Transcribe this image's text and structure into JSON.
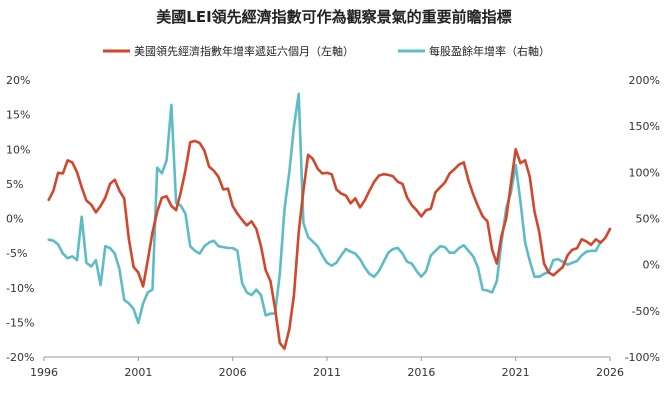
{
  "chart_data": {
    "type": "line",
    "title": "美國LEI領先經濟指數可作為觀察景氣的重要前瞻指標",
    "grid": false,
    "legend_position": "top",
    "x_range": [
      1996,
      2026
    ],
    "x_ticks": [
      "1996",
      "2001",
      "2006",
      "2011",
      "2016",
      "2021",
      "2026"
    ],
    "y_left": {
      "range": [
        -20,
        20
      ],
      "ticks": [
        "20%",
        "15%",
        "10%",
        "5%",
        "0%",
        "-5%",
        "-10%",
        "-15%",
        "-20%"
      ]
    },
    "y_right": {
      "range": [
        -100,
        200
      ],
      "ticks": [
        "200%",
        "150%",
        "100%",
        "50%",
        "0%",
        "-50%",
        "-100%"
      ]
    },
    "series": [
      {
        "name": "美國領先經濟指數年增率遞延六個月（左軸）",
        "axis": "left",
        "color": "#d2462b",
        "points": [
          [
            1996.25,
            2.7
          ],
          [
            1996.5,
            4.0
          ],
          [
            1996.75,
            6.6
          ],
          [
            1997.0,
            6.5
          ],
          [
            1997.25,
            8.4
          ],
          [
            1997.5,
            8.1
          ],
          [
            1997.75,
            6.7
          ],
          [
            1998.0,
            4.5
          ],
          [
            1998.25,
            2.6
          ],
          [
            1998.5,
            2.0
          ],
          [
            1998.75,
            0.9
          ],
          [
            1999.0,
            1.8
          ],
          [
            1999.25,
            3.0
          ],
          [
            1999.5,
            5.0
          ],
          [
            1999.75,
            5.6
          ],
          [
            2000.0,
            4.0
          ],
          [
            2000.25,
            2.9
          ],
          [
            2000.5,
            -3.0
          ],
          [
            2000.75,
            -7.0
          ],
          [
            2001.0,
            -7.8
          ],
          [
            2001.25,
            -9.8
          ],
          [
            2001.5,
            -6.0
          ],
          [
            2001.75,
            -2.0
          ],
          [
            2002.0,
            1.0
          ],
          [
            2002.25,
            3.0
          ],
          [
            2002.5,
            3.2
          ],
          [
            2002.75,
            1.8
          ],
          [
            2003.0,
            1.2
          ],
          [
            2003.25,
            3.8
          ],
          [
            2003.5,
            7.0
          ],
          [
            2003.75,
            11.0
          ],
          [
            2004.0,
            11.2
          ],
          [
            2004.25,
            10.9
          ],
          [
            2004.5,
            9.8
          ],
          [
            2004.75,
            7.5
          ],
          [
            2005.0,
            6.9
          ],
          [
            2005.25,
            6.0
          ],
          [
            2005.5,
            4.2
          ],
          [
            2005.75,
            4.3
          ],
          [
            2006.0,
            1.8
          ],
          [
            2006.25,
            0.7
          ],
          [
            2006.5,
            -0.2
          ],
          [
            2006.75,
            -1.0
          ],
          [
            2007.0,
            -0.4
          ],
          [
            2007.25,
            -1.5
          ],
          [
            2007.5,
            -4.0
          ],
          [
            2007.75,
            -7.5
          ],
          [
            2008.0,
            -9.0
          ],
          [
            2008.25,
            -13.0
          ],
          [
            2008.5,
            -18.0
          ],
          [
            2008.75,
            -18.8
          ],
          [
            2009.0,
            -16.0
          ],
          [
            2009.25,
            -11.0
          ],
          [
            2009.5,
            -2.0
          ],
          [
            2009.75,
            4.0
          ],
          [
            2010.0,
            9.2
          ],
          [
            2010.25,
            8.6
          ],
          [
            2010.5,
            7.2
          ],
          [
            2010.75,
            6.5
          ],
          [
            2011.0,
            6.6
          ],
          [
            2011.25,
            6.4
          ],
          [
            2011.5,
            4.2
          ],
          [
            2011.75,
            3.6
          ],
          [
            2012.0,
            3.3
          ],
          [
            2012.25,
            2.2
          ],
          [
            2012.5,
            2.9
          ],
          [
            2012.75,
            1.6
          ],
          [
            2013.0,
            2.6
          ],
          [
            2013.25,
            4.0
          ],
          [
            2013.5,
            5.3
          ],
          [
            2013.75,
            6.2
          ],
          [
            2014.0,
            6.4
          ],
          [
            2014.25,
            6.3
          ],
          [
            2014.5,
            6.1
          ],
          [
            2014.75,
            5.3
          ],
          [
            2015.0,
            5.0
          ],
          [
            2015.25,
            3.0
          ],
          [
            2015.5,
            1.9
          ],
          [
            2015.75,
            1.2
          ],
          [
            2016.0,
            0.3
          ],
          [
            2016.25,
            1.2
          ],
          [
            2016.5,
            1.4
          ],
          [
            2016.75,
            3.8
          ],
          [
            2017.0,
            4.5
          ],
          [
            2017.25,
            5.2
          ],
          [
            2017.5,
            6.5
          ],
          [
            2017.75,
            7.1
          ],
          [
            2018.0,
            7.8
          ],
          [
            2018.25,
            8.1
          ],
          [
            2018.5,
            5.5
          ],
          [
            2018.75,
            3.5
          ],
          [
            2019.0,
            1.8
          ],
          [
            2019.25,
            0.3
          ],
          [
            2019.5,
            -0.4
          ],
          [
            2019.75,
            -4.5
          ],
          [
            2020.0,
            -6.5
          ],
          [
            2020.25,
            -2.5
          ],
          [
            2020.5,
            0.0
          ],
          [
            2020.75,
            5.0
          ],
          [
            2021.0,
            10.0
          ],
          [
            2021.25,
            8.0
          ],
          [
            2021.5,
            8.4
          ],
          [
            2021.75,
            6.0
          ],
          [
            2022.0,
            1.0
          ],
          [
            2022.25,
            -2.0
          ],
          [
            2022.5,
            -6.5
          ],
          [
            2022.75,
            -7.8
          ],
          [
            2023.0,
            -8.2
          ],
          [
            2023.25,
            -7.6
          ],
          [
            2023.5,
            -7.0
          ],
          [
            2023.75,
            -5.3
          ],
          [
            2024.0,
            -4.5
          ],
          [
            2024.25,
            -4.3
          ],
          [
            2024.5,
            -3.0
          ],
          [
            2024.75,
            -3.3
          ],
          [
            2025.0,
            -3.8
          ],
          [
            2025.25,
            -3.0
          ],
          [
            2025.5,
            -3.5
          ],
          [
            2025.75,
            -2.8
          ],
          [
            2026.0,
            -1.5
          ]
        ]
      },
      {
        "name": "每股盈餘年增率（右軸）",
        "axis": "right",
        "color": "#5dbcc4",
        "points": [
          [
            1996.25,
            27
          ],
          [
            1996.5,
            26
          ],
          [
            1996.75,
            22
          ],
          [
            1997.0,
            12
          ],
          [
            1997.25,
            7
          ],
          [
            1997.5,
            9
          ],
          [
            1997.75,
            5
          ],
          [
            1998.0,
            52
          ],
          [
            1998.25,
            2
          ],
          [
            1998.5,
            -2
          ],
          [
            1998.75,
            5
          ],
          [
            1999.0,
            -22
          ],
          [
            1999.25,
            20
          ],
          [
            1999.5,
            18
          ],
          [
            1999.75,
            12
          ],
          [
            2000.0,
            -5
          ],
          [
            2000.25,
            -38
          ],
          [
            2000.5,
            -42
          ],
          [
            2000.75,
            -48
          ],
          [
            2001.0,
            -63
          ],
          [
            2001.25,
            -42
          ],
          [
            2001.5,
            -30
          ],
          [
            2001.75,
            -27
          ],
          [
            2002.0,
            105
          ],
          [
            2002.25,
            99
          ],
          [
            2002.5,
            113
          ],
          [
            2002.75,
            173
          ],
          [
            2003.0,
            67
          ],
          [
            2003.25,
            64
          ],
          [
            2003.5,
            55
          ],
          [
            2003.75,
            20
          ],
          [
            2004.0,
            15
          ],
          [
            2004.25,
            12
          ],
          [
            2004.5,
            20
          ],
          [
            2004.75,
            24
          ],
          [
            2005.0,
            26
          ],
          [
            2005.25,
            20
          ],
          [
            2005.5,
            19
          ],
          [
            2005.75,
            18
          ],
          [
            2006.0,
            18
          ],
          [
            2006.25,
            15
          ],
          [
            2006.5,
            -20
          ],
          [
            2006.75,
            -30
          ],
          [
            2007.0,
            -33
          ],
          [
            2007.25,
            -27
          ],
          [
            2007.5,
            -33
          ],
          [
            2007.75,
            -55
          ],
          [
            2008.0,
            -53
          ],
          [
            2008.25,
            -53
          ],
          [
            2008.5,
            -10
          ],
          [
            2008.75,
            60
          ],
          [
            2009.0,
            100
          ],
          [
            2009.25,
            150
          ],
          [
            2009.5,
            185
          ],
          [
            2009.75,
            45
          ],
          [
            2010.0,
            30
          ],
          [
            2010.25,
            25
          ],
          [
            2010.5,
            20
          ],
          [
            2010.75,
            10
          ],
          [
            2011.0,
            2
          ],
          [
            2011.25,
            -1
          ],
          [
            2011.5,
            2
          ],
          [
            2011.75,
            10
          ],
          [
            2012.0,
            17
          ],
          [
            2012.25,
            14
          ],
          [
            2012.5,
            12
          ],
          [
            2012.75,
            6
          ],
          [
            2013.0,
            -3
          ],
          [
            2013.25,
            -10
          ],
          [
            2013.5,
            -13
          ],
          [
            2013.75,
            -7
          ],
          [
            2014.0,
            3
          ],
          [
            2014.25,
            13
          ],
          [
            2014.5,
            17
          ],
          [
            2014.75,
            18
          ],
          [
            2015.0,
            12
          ],
          [
            2015.25,
            3
          ],
          [
            2015.5,
            1
          ],
          [
            2015.75,
            -7
          ],
          [
            2016.0,
            -13
          ],
          [
            2016.25,
            -7
          ],
          [
            2016.5,
            10
          ],
          [
            2016.75,
            15
          ],
          [
            2017.0,
            20
          ],
          [
            2017.25,
            19
          ],
          [
            2017.5,
            13
          ],
          [
            2017.75,
            13
          ],
          [
            2018.0,
            18
          ],
          [
            2018.25,
            21
          ],
          [
            2018.5,
            15
          ],
          [
            2018.75,
            9
          ],
          [
            2019.0,
            -3
          ],
          [
            2019.25,
            -27
          ],
          [
            2019.5,
            -28
          ],
          [
            2019.75,
            -30
          ],
          [
            2020.0,
            -18
          ],
          [
            2020.25,
            24
          ],
          [
            2020.5,
            61
          ],
          [
            2020.75,
            78
          ],
          [
            2021.0,
            108
          ],
          [
            2021.25,
            69
          ],
          [
            2021.5,
            24
          ],
          [
            2021.75,
            4
          ],
          [
            2022.0,
            -13
          ],
          [
            2022.25,
            -13
          ],
          [
            2022.5,
            -10
          ],
          [
            2022.75,
            -8
          ],
          [
            2023.0,
            5
          ],
          [
            2023.25,
            6
          ],
          [
            2023.5,
            3
          ],
          [
            2023.75,
            0
          ],
          [
            2024.0,
            2
          ],
          [
            2024.25,
            4
          ],
          [
            2024.5,
            10
          ],
          [
            2024.75,
            14
          ],
          [
            2025.0,
            15
          ],
          [
            2025.25,
            15
          ],
          [
            2025.5,
            25
          ]
        ]
      }
    ]
  }
}
